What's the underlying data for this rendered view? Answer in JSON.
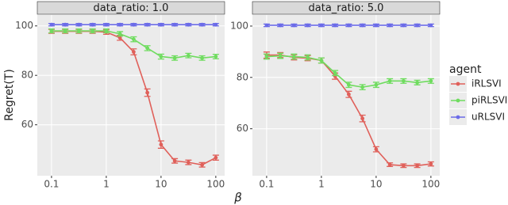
{
  "chart_data": [
    {
      "type": "line",
      "title": "data_ratio: 1.0",
      "log_x": true,
      "grid": true,
      "x": [
        0.1,
        0.178,
        0.316,
        0.562,
        1,
        1.778,
        3.162,
        5.623,
        10,
        17.78,
        31.62,
        56.23,
        100
      ],
      "xlim": [
        0.055,
        145
      ],
      "xticks": [
        0.1,
        1,
        10,
        100
      ],
      "ylim": [
        39.4,
        104.4
      ],
      "yticks": [
        60,
        80,
        100
      ],
      "series": [
        {
          "name": "iRLSVI",
          "color": "#e0605a",
          "values": [
            97.8,
            97.8,
            97.8,
            97.8,
            97.5,
            95.2,
            89.5,
            73,
            52,
            45.4,
            44.8,
            43.8,
            46.7
          ],
          "errors": [
            0.8,
            0.8,
            0.8,
            0.8,
            0.9,
            1,
            1.2,
            1.5,
            1.5,
            0.9,
            0.9,
            0.9,
            1
          ]
        },
        {
          "name": "piRLSVI",
          "color": "#6fdc5f",
          "values": [
            98,
            98,
            98,
            98,
            98,
            96.8,
            94.6,
            91,
            87.6,
            87,
            88,
            87,
            87.6
          ],
          "errors": [
            0.8,
            0.8,
            0.8,
            0.8,
            0.8,
            0.9,
            1,
            1,
            1,
            0.9,
            0.9,
            0.9,
            0.9
          ]
        },
        {
          "name": "uRLSVI",
          "color": "#6b6be8",
          "values": [
            100.5,
            100.5,
            100.5,
            100.5,
            100.5,
            100.5,
            100.5,
            100.5,
            100.5,
            100.5,
            100.5,
            100.5,
            100.5
          ],
          "errors": [
            0.5,
            0.5,
            0.5,
            0.5,
            0.5,
            0.5,
            0.5,
            0.5,
            0.5,
            0.5,
            0.5,
            0.5,
            0.5
          ]
        }
      ]
    },
    {
      "type": "line",
      "title": "data_ratio: 5.0",
      "log_x": true,
      "grid": true,
      "x": [
        0.1,
        0.178,
        0.316,
        0.562,
        1,
        1.778,
        3.162,
        5.623,
        10,
        17.78,
        31.62,
        56.23,
        100
      ],
      "xlim": [
        0.055,
        145
      ],
      "xticks": [
        0.1,
        1,
        10,
        100
      ],
      "ylim": [
        41.7,
        104.3
      ],
      "yticks": [
        60,
        80,
        100
      ],
      "series": [
        {
          "name": "iRLSVI",
          "color": "#e0605a",
          "values": [
            88.7,
            88.7,
            87.8,
            87.5,
            86.6,
            80.5,
            73.4,
            64,
            52,
            46,
            45.6,
            45.6,
            46.3
          ],
          "errors": [
            1.2,
            1,
            1,
            1,
            1,
            1.2,
            1.2,
            1.3,
            1,
            0.7,
            0.7,
            0.7,
            0.8
          ]
        },
        {
          "name": "piRLSVI",
          "color": "#6fdc5f",
          "values": [
            88.1,
            88.4,
            88.1,
            87.8,
            86.6,
            81.7,
            77.1,
            76.2,
            77.1,
            78.6,
            78.6,
            78,
            78.6
          ],
          "errors": [
            1,
            1,
            1,
            1,
            1,
            1,
            1,
            1,
            1,
            0.9,
            0.9,
            0.9,
            0.9
          ]
        },
        {
          "name": "uRLSVI",
          "color": "#6b6be8",
          "values": [
            100.3,
            100.3,
            100.3,
            100.3,
            100.3,
            100.3,
            100.3,
            100.3,
            100.3,
            100.3,
            100.3,
            100.3,
            100.3
          ],
          "errors": [
            0.5,
            0.5,
            0.5,
            0.5,
            0.5,
            0.5,
            0.5,
            0.5,
            0.5,
            0.5,
            0.5,
            0.5,
            0.5
          ]
        }
      ]
    }
  ],
  "x_label": "β",
  "y_label": "Regret(T)",
  "legend_title": "agent"
}
